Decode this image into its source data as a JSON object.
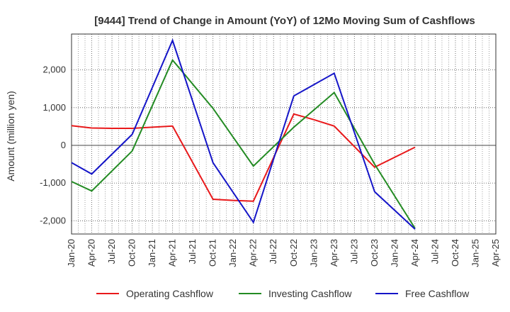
{
  "chart_data": {
    "type": "line",
    "title": "[9444]  Trend of Change in Amount (YoY) of 12Mo Moving Sum of Cashflows",
    "xlabel": "",
    "ylabel": "Amount (million yen)",
    "categories": [
      "Jan-20",
      "Apr-20",
      "Jul-20",
      "Oct-20",
      "Jan-21",
      "Apr-21",
      "Jul-21",
      "Oct-21",
      "Jan-22",
      "Apr-22",
      "Jul-22",
      "Oct-22",
      "Jan-23",
      "Apr-23",
      "Jul-23",
      "Oct-23",
      "Jan-24",
      "Apr-24",
      "Jul-24",
      "Oct-24",
      "Jan-25",
      "Apr-25"
    ],
    "ylim": [
      -2350,
      2950
    ],
    "yticks": [
      -2000,
      -1000,
      0,
      1000,
      2000
    ],
    "ytick_labels": [
      "-2,000",
      "-1,000",
      "0",
      "1,000",
      "2,000"
    ],
    "grid": true,
    "legend_position": "bottom",
    "series": [
      {
        "name": "Operating Cashflow",
        "color": "#e8191b",
        "values": [
          520,
          460,
          450,
          450,
          480,
          510,
          null,
          -1430,
          -1460,
          -1480,
          null,
          830,
          680,
          510,
          null,
          -580,
          null,
          -50,
          null,
          null,
          null,
          null
        ]
      },
      {
        "name": "Investing Cashflow",
        "color": "#238b23",
        "values": [
          -960,
          -1210,
          null,
          -150,
          null,
          2260,
          null,
          980,
          null,
          -550,
          null,
          480,
          null,
          1400,
          null,
          -500,
          null,
          -2200,
          null,
          null,
          null,
          null
        ]
      },
      {
        "name": "Free Cashflow",
        "color": "#1515c8",
        "values": [
          -460,
          -760,
          null,
          290,
          null,
          2780,
          null,
          -460,
          null,
          -2040,
          null,
          1310,
          null,
          1910,
          null,
          -1230,
          null,
          -2220,
          null,
          null,
          null,
          null
        ]
      }
    ]
  }
}
